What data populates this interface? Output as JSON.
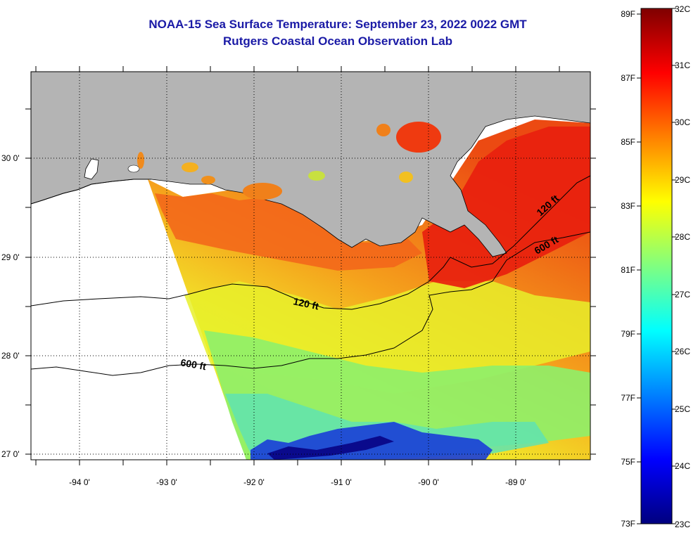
{
  "title": {
    "line1": "NOAA-15 Sea Surface Temperature:  September 23, 2022 0022 GMT",
    "line2": "Rutgers Coastal Ocean Observation Lab"
  },
  "map": {
    "lon_labels": [
      "-94 0'",
      "-93 0'",
      "-92 0'",
      "-91 0'",
      "-90 0'",
      "-89 0'"
    ],
    "lat_labels": [
      "30 0'",
      "29 0'",
      "28 0'",
      "27 0'"
    ],
    "contour_labels": [
      "120 ft",
      "600 ft",
      "120 ft",
      "600 ft"
    ],
    "colors": {
      "land": "#b4b4b4",
      "no_data": "#ffffff"
    }
  },
  "colorbar": {
    "fahrenheit_labels": [
      "89F",
      "87F",
      "85F",
      "83F",
      "81F",
      "79F",
      "77F",
      "75F",
      "73F"
    ],
    "celsius_labels": [
      "32C",
      "31C",
      "30C",
      "29C",
      "28C",
      "27C",
      "26C",
      "25C",
      "24C",
      "23C"
    ],
    "colormap": [
      "#00007f",
      "#0000ff",
      "#0080ff",
      "#00ffff",
      "#80ff80",
      "#ffff00",
      "#ff8000",
      "#ff0000",
      "#7f0000"
    ]
  }
}
